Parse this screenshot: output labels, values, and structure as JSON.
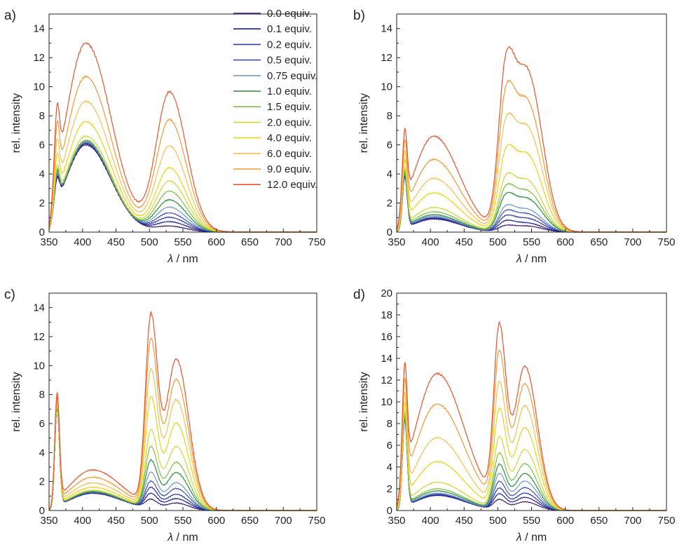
{
  "legend": [
    {
      "label": "0.0 equiv.",
      "color": "#3f1a6e"
    },
    {
      "label": "0.1 equiv.",
      "color": "#1f1f8c"
    },
    {
      "label": "0.2 equiv.",
      "color": "#2c3a9c"
    },
    {
      "label": "0.5 equiv.",
      "color": "#4250b0"
    },
    {
      "label": "0.75 equiv.",
      "color": "#6f9ac6"
    },
    {
      "label": "1.0 equiv.",
      "color": "#2e8b3f"
    },
    {
      "label": "1.5 equiv.",
      "color": "#7cc04a"
    },
    {
      "label": "2.0 equiv.",
      "color": "#cfd63a"
    },
    {
      "label": "4.0 equiv.",
      "color": "#e6d419"
    },
    {
      "label": "6.0 equiv.",
      "color": "#f0c257"
    },
    {
      "label": "9.0 equiv.",
      "color": "#ee9a36"
    },
    {
      "label": "12.0 equiv.",
      "color": "#e6532e"
    }
  ],
  "chart_data": [
    {
      "panel_label": "a)",
      "type": "line",
      "xlabel_symbol": "λ",
      "xlabel_unit": " / nm",
      "ylabel": "rel. intensity",
      "xlim": [
        350,
        750
      ],
      "ylim": [
        0,
        15
      ],
      "xticks": [
        350,
        400,
        450,
        500,
        550,
        600,
        650,
        700,
        750
      ],
      "yticks": [
        0,
        2,
        4,
        6,
        8,
        10,
        12,
        14
      ],
      "peaks": [
        {
          "center": 362,
          "width": 3.5
        },
        {
          "center": 405,
          "width": 30
        },
        {
          "center": 530,
          "width": 20
        }
      ],
      "series": [
        {
          "name": "0.0 equiv.",
          "amps": [
            1.6,
            6.0,
            0.4
          ]
        },
        {
          "name": "0.1 equiv.",
          "amps": [
            1.7,
            6.1,
            0.7
          ]
        },
        {
          "name": "0.2 equiv.",
          "amps": [
            1.8,
            6.1,
            1.0
          ]
        },
        {
          "name": "0.5 equiv.",
          "amps": [
            1.8,
            6.2,
            1.3
          ]
        },
        {
          "name": "0.75 equiv.",
          "amps": [
            1.9,
            6.2,
            1.7
          ]
        },
        {
          "name": "1.0 equiv.",
          "amps": [
            2.0,
            6.3,
            2.2
          ]
        },
        {
          "name": "1.5 equiv.",
          "amps": [
            2.1,
            6.3,
            2.8
          ]
        },
        {
          "name": "2.0 equiv.",
          "amps": [
            2.3,
            6.6,
            3.5
          ]
        },
        {
          "name": "4.0 equiv.",
          "amps": [
            2.7,
            7.6,
            4.4
          ]
        },
        {
          "name": "6.0 equiv.",
          "amps": [
            3.2,
            9.0,
            5.9
          ]
        },
        {
          "name": "9.0 equiv.",
          "amps": [
            3.8,
            10.7,
            7.7
          ]
        },
        {
          "name": "12.0 equiv.",
          "amps": [
            4.2,
            13.0,
            9.6
          ]
        }
      ]
    },
    {
      "panel_label": "b)",
      "type": "line",
      "xlabel_symbol": "λ",
      "xlabel_unit": " / nm",
      "ylabel": "rel. intensity",
      "xlim": [
        350,
        750
      ],
      "ylim": [
        0,
        15
      ],
      "xticks": [
        350,
        400,
        450,
        500,
        550,
        600,
        650,
        700,
        750
      ],
      "yticks": [
        0,
        2,
        4,
        6,
        8,
        10,
        12,
        14
      ],
      "peaks": [
        {
          "center": 362,
          "width": 3.5
        },
        {
          "center": 405,
          "width": 30
        },
        {
          "center": 512,
          "width": 11
        },
        {
          "center": 545,
          "width": 17
        }
      ],
      "series": [
        {
          "name": "0.0 equiv.",
          "amps": [
            3.5,
            0.9,
            0.4,
            0.4
          ]
        },
        {
          "name": "0.1 equiv.",
          "amps": [
            3.6,
            0.95,
            0.7,
            0.6
          ]
        },
        {
          "name": "0.2 equiv.",
          "amps": [
            3.6,
            1.0,
            1.0,
            0.9
          ]
        },
        {
          "name": "0.5 equiv.",
          "amps": [
            3.7,
            1.0,
            1.3,
            1.2
          ]
        },
        {
          "name": "0.75 equiv.",
          "amps": [
            3.7,
            1.1,
            1.6,
            1.5
          ]
        },
        {
          "name": "1.0 equiv.",
          "amps": [
            3.8,
            1.2,
            2.3,
            2.2
          ]
        },
        {
          "name": "1.5 equiv.",
          "amps": [
            3.8,
            1.4,
            2.8,
            2.7
          ]
        },
        {
          "name": "2.0 equiv.",
          "amps": [
            3.9,
            1.7,
            3.4,
            3.4
          ]
        },
        {
          "name": "4.0 equiv.",
          "amps": [
            4.1,
            2.7,
            5.0,
            5.1
          ]
        },
        {
          "name": "6.0 equiv.",
          "amps": [
            4.3,
            3.7,
            6.8,
            6.9
          ]
        },
        {
          "name": "9.0 equiv.",
          "amps": [
            4.6,
            5.0,
            8.7,
            8.6
          ]
        },
        {
          "name": "12.0 equiv.",
          "amps": [
            4.8,
            6.6,
            10.6,
            10.6
          ]
        }
      ]
    },
    {
      "panel_label": "c)",
      "type": "line",
      "xlabel_symbol": "λ",
      "xlabel_unit": " / nm",
      "ylabel": "rel. intensity",
      "xlim": [
        350,
        750
      ],
      "ylim": [
        0,
        15
      ],
      "xticks": [
        350,
        400,
        450,
        500,
        550,
        600,
        650,
        700,
        750
      ],
      "yticks": [
        0,
        2,
        4,
        6,
        8,
        10,
        12,
        14
      ],
      "peaks": [
        {
          "center": 362,
          "width": 3.5
        },
        {
          "center": 415,
          "width": 35
        },
        {
          "center": 502,
          "width": 8
        },
        {
          "center": 540,
          "width": 15
        }
      ],
      "series": [
        {
          "name": "0.0 equiv.",
          "amps": [
            6.8,
            1.2,
            0.6,
            0.5
          ]
        },
        {
          "name": "0.1 equiv.",
          "amps": [
            6.8,
            1.2,
            1.0,
            0.8
          ]
        },
        {
          "name": "0.2 equiv.",
          "amps": [
            6.8,
            1.2,
            1.4,
            1.1
          ]
        },
        {
          "name": "0.5 equiv.",
          "amps": [
            6.8,
            1.25,
            1.8,
            1.5
          ]
        },
        {
          "name": "0.75 equiv.",
          "amps": [
            6.9,
            1.3,
            2.4,
            1.9
          ]
        },
        {
          "name": "1.0 equiv.",
          "amps": [
            6.9,
            1.3,
            3.2,
            2.6
          ]
        },
        {
          "name": "1.5 equiv.",
          "amps": [
            6.9,
            1.35,
            4.1,
            3.3
          ]
        },
        {
          "name": "2.0 equiv.",
          "amps": [
            6.9,
            1.4,
            5.2,
            4.4
          ]
        },
        {
          "name": "4.0 equiv.",
          "amps": [
            7.0,
            1.6,
            7.4,
            6.0
          ]
        },
        {
          "name": "6.0 equiv.",
          "amps": [
            7.1,
            1.9,
            9.2,
            7.6
          ]
        },
        {
          "name": "9.0 equiv.",
          "amps": [
            7.2,
            2.3,
            11.2,
            9.0
          ]
        },
        {
          "name": "12.0 equiv.",
          "amps": [
            7.3,
            2.8,
            12.8,
            10.4
          ]
        }
      ]
    },
    {
      "panel_label": "d)",
      "type": "line",
      "xlabel_symbol": "λ",
      "xlabel_unit": " / nm",
      "ylabel": "rel. intensity",
      "xlim": [
        350,
        750
      ],
      "ylim": [
        0,
        20
      ],
      "xticks": [
        350,
        400,
        450,
        500,
        550,
        600,
        650,
        700,
        750
      ],
      "yticks": [
        0,
        2,
        4,
        6,
        8,
        10,
        12,
        14,
        16,
        18,
        20
      ],
      "peaks": [
        {
          "center": 362,
          "width": 3.5
        },
        {
          "center": 410,
          "width": 32
        },
        {
          "center": 502,
          "width": 8
        },
        {
          "center": 540,
          "width": 15
        }
      ],
      "series": [
        {
          "name": "0.0 equiv.",
          "amps": [
            8.0,
            1.4,
            0.9,
            0.8
          ]
        },
        {
          "name": "0.1 equiv.",
          "amps": [
            8.0,
            1.4,
            1.4,
            1.2
          ]
        },
        {
          "name": "0.2 equiv.",
          "amps": [
            8.1,
            1.5,
            1.9,
            1.6
          ]
        },
        {
          "name": "0.5 equiv.",
          "amps": [
            8.1,
            1.5,
            2.5,
            2.1
          ]
        },
        {
          "name": "0.75 equiv.",
          "amps": [
            8.2,
            1.6,
            3.2,
            2.7
          ]
        },
        {
          "name": "1.0 equiv.",
          "amps": [
            8.2,
            1.8,
            4.0,
            3.4
          ]
        },
        {
          "name": "1.5 equiv.",
          "amps": [
            8.3,
            2.0,
            5.0,
            4.3
          ]
        },
        {
          "name": "2.0 equiv.",
          "amps": [
            8.4,
            2.6,
            6.4,
            5.6
          ]
        },
        {
          "name": "4.0 equiv.",
          "amps": [
            8.6,
            4.5,
            8.8,
            7.6
          ]
        },
        {
          "name": "6.0 equiv.",
          "amps": [
            8.8,
            6.7,
            11.0,
            9.6
          ]
        },
        {
          "name": "9.0 equiv.",
          "amps": [
            9.1,
            9.8,
            13.6,
            11.6
          ]
        },
        {
          "name": "12.0 equiv.",
          "amps": [
            9.6,
            12.6,
            15.8,
            13.2
          ]
        }
      ]
    }
  ]
}
